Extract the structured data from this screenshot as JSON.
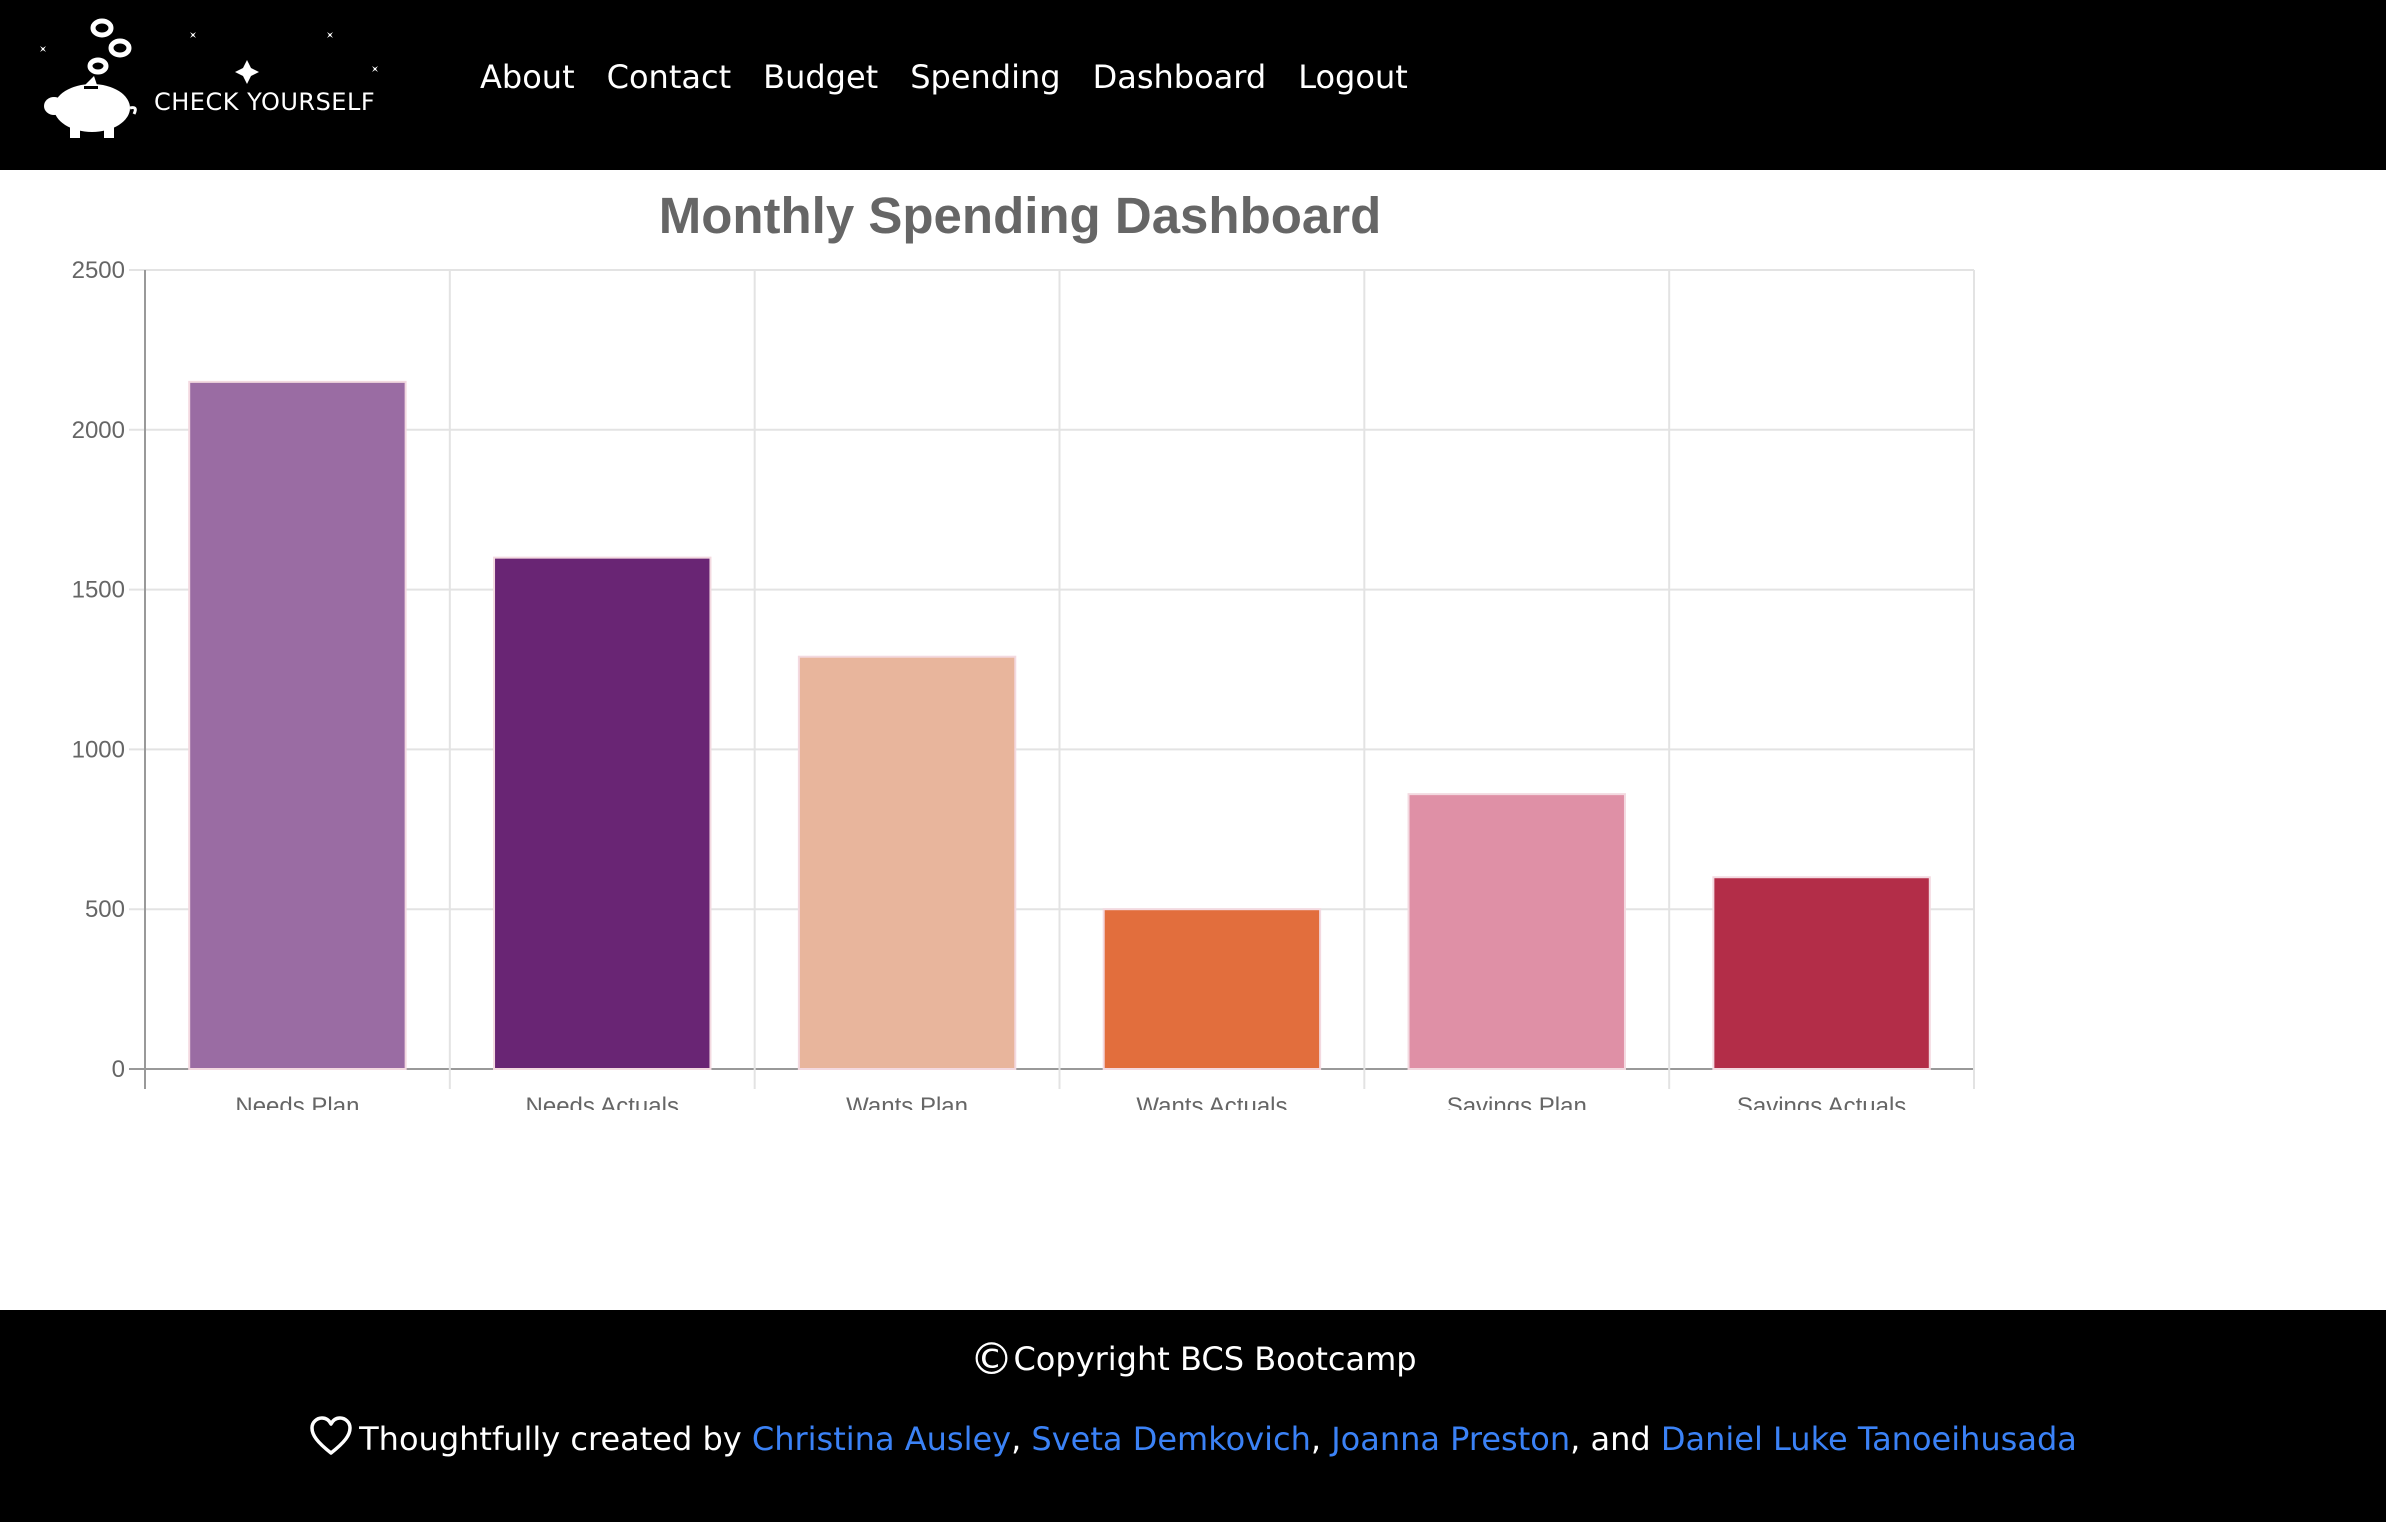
{
  "header": {
    "logo_text": "CHECK YOURSELF",
    "nav": [
      "About",
      "Contact",
      "Budget",
      "Spending",
      "Dashboard",
      "Logout"
    ]
  },
  "chart_data": {
    "type": "bar",
    "title": "Monthly Spending Dashboard",
    "categories": [
      "Needs Plan",
      "Needs Actuals",
      "Wants Plan",
      "Wants Actuals",
      "Savings Plan",
      "Savings Actuals"
    ],
    "values": [
      2150,
      1600,
      1290,
      500,
      860,
      600
    ],
    "colors": [
      "#9a6ca3",
      "#692574",
      "#e8b59c",
      "#e26e3d",
      "#df90a6",
      "#b32d48"
    ],
    "ylim": [
      0,
      2500
    ],
    "yticks": [
      0,
      500,
      1000,
      1500,
      2000,
      2500
    ],
    "grid": true,
    "xlabel": "",
    "ylabel": ""
  },
  "footer": {
    "copyright_symbol": "©",
    "copyright": "Copyright BCS Bootcamp",
    "credits_prefix": "Thoughtfully created by",
    "authors": [
      "Christina Ausley",
      "Sveta Demkovich",
      "Joanna Preston",
      "Daniel Luke Tanoeihusada"
    ],
    "sep1": ",",
    "sep2": ",",
    "sep3": ", and"
  },
  "icons": {
    "logo": "piggy-bank-icon",
    "heart": "heart-outline-icon"
  }
}
